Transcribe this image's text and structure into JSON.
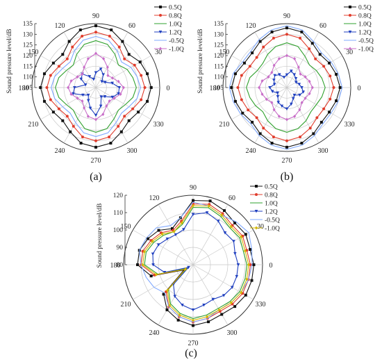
{
  "colors": {
    "background": "#ffffff",
    "axis": "#333333",
    "grid": "#c8c8c8",
    "text": "#222222"
  },
  "panel_labels": [
    "(a)",
    "(b)",
    "(c)"
  ],
  "chart_data": [
    {
      "type": "polar-line",
      "panel": "(a)",
      "ylabel": "Sound pressure level/dB",
      "rlim": [
        105,
        135
      ],
      "r_ticks": [
        105,
        110,
        115,
        120,
        125,
        130,
        135
      ],
      "angle_ticks": [
        0,
        30,
        60,
        90,
        120,
        150,
        180,
        210,
        240,
        270,
        300,
        330
      ],
      "grid": true,
      "legend_position": "top-right",
      "theta": [
        0,
        15,
        30,
        45,
        60,
        75,
        90,
        105,
        120,
        135,
        150,
        165,
        180,
        195,
        210,
        225,
        240,
        255,
        270,
        285,
        300,
        315,
        330,
        345
      ],
      "series": [
        {
          "name": "0.5Q",
          "color": "#111111",
          "marker": "square",
          "values": [
            131,
            130,
            129,
            127,
            130,
            133,
            134,
            133,
            130,
            127,
            128,
            130,
            131,
            130,
            128,
            127,
            129,
            132,
            133,
            132,
            129,
            127,
            128,
            130
          ]
        },
        {
          "name": "0.8Q",
          "color": "#e03c2c",
          "marker": "circle",
          "values": [
            128,
            127,
            126,
            124,
            127,
            130,
            131,
            130,
            127,
            124,
            125,
            127,
            128,
            127,
            125,
            124,
            126,
            129,
            130,
            129,
            126,
            124,
            125,
            127
          ]
        },
        {
          "name": "1.0Q",
          "color": "#2ea02c",
          "marker": "none",
          "values": [
            124,
            123,
            122,
            120,
            123,
            126,
            127,
            126,
            123,
            120,
            121,
            123,
            124,
            123,
            121,
            120,
            122,
            125,
            126,
            125,
            122,
            120,
            121,
            123
          ]
        },
        {
          "name": "1.2Q",
          "color": "#1f3fbf",
          "marker": "triangle",
          "values": [
            116,
            113,
            110,
            109,
            112,
            114,
            112,
            109,
            111,
            114,
            113,
            110,
            115,
            116,
            112,
            110,
            112,
            115,
            118,
            114,
            110,
            111,
            114,
            116
          ]
        },
        {
          "name": "-0.5Q",
          "color": "#7fa8ff",
          "marker": "none",
          "values": [
            126,
            125,
            124,
            122,
            125,
            128,
            129,
            128,
            125,
            122,
            123,
            125,
            126,
            125,
            123,
            122,
            124,
            127,
            128,
            127,
            124,
            122,
            123,
            125
          ]
        },
        {
          "name": "-1.0Q",
          "color": "#c86ec8",
          "marker": "diamond",
          "values": [
            118,
            116,
            114,
            113,
            116,
            119,
            121,
            119,
            116,
            114,
            115,
            117,
            118,
            117,
            115,
            114,
            116,
            119,
            120,
            118,
            115,
            114,
            115,
            117
          ]
        }
      ]
    },
    {
      "type": "polar-line",
      "panel": "(b)",
      "ylabel": "Sound pressure level/dB",
      "rlim": [
        105,
        135
      ],
      "r_ticks": [
        105,
        110,
        115,
        120,
        125,
        130,
        135
      ],
      "angle_ticks": [
        0,
        30,
        60,
        90,
        120,
        150,
        180,
        210,
        240,
        270,
        300,
        330
      ],
      "grid": true,
      "legend_position": "top-right",
      "theta": [
        0,
        15,
        30,
        45,
        60,
        75,
        90,
        105,
        120,
        135,
        150,
        165,
        180,
        195,
        210,
        225,
        240,
        255,
        270,
        285,
        300,
        315,
        330,
        345
      ],
      "series": [
        {
          "name": "0.5Q",
          "color": "#111111",
          "marker": "square",
          "values": [
            130,
            129,
            128,
            127,
            129,
            132,
            133,
            132,
            130,
            128,
            128,
            130,
            131,
            130,
            129,
            128,
            130,
            132,
            133,
            132,
            130,
            128,
            128,
            129
          ]
        },
        {
          "name": "0.8Q",
          "color": "#e03c2c",
          "marker": "circle",
          "values": [
            127,
            126,
            125,
            124,
            126,
            129,
            130,
            129,
            127,
            125,
            125,
            127,
            128,
            127,
            126,
            125,
            127,
            129,
            130,
            129,
            127,
            125,
            125,
            126
          ]
        },
        {
          "name": "1.0Q",
          "color": "#2ea02c",
          "marker": "none",
          "values": [
            123,
            122,
            121,
            120,
            122,
            125,
            126,
            125,
            123,
            121,
            121,
            123,
            124,
            123,
            122,
            121,
            123,
            125,
            126,
            125,
            123,
            121,
            121,
            122
          ]
        },
        {
          "name": "1.2Q",
          "color": "#1f3fbf",
          "marker": "triangle",
          "values": [
            112,
            111,
            110,
            111,
            112,
            113,
            111,
            110,
            112,
            113,
            112,
            111,
            113,
            112,
            110,
            111,
            113,
            114,
            115,
            113,
            111,
            110,
            112,
            113
          ]
        },
        {
          "name": "-0.5Q",
          "color": "#7fa8ff",
          "marker": "none",
          "values": [
            131,
            130,
            129,
            128,
            130,
            133,
            134,
            133,
            131,
            129,
            129,
            131,
            132,
            131,
            130,
            129,
            131,
            133,
            134,
            133,
            131,
            129,
            129,
            130
          ]
        },
        {
          "name": "-1.0Q",
          "color": "#c86ec8",
          "marker": "diamond",
          "values": [
            117,
            116,
            115,
            114,
            116,
            119,
            120,
            119,
            117,
            115,
            115,
            117,
            118,
            117,
            116,
            115,
            117,
            119,
            120,
            119,
            117,
            115,
            115,
            116
          ]
        }
      ]
    },
    {
      "type": "polar-line",
      "panel": "(c)",
      "ylabel": "Sound pressure level/dB",
      "rlim": [
        80,
        120
      ],
      "r_ticks": [
        80,
        90,
        100,
        110,
        120
      ],
      "angle_ticks": [
        0,
        30,
        60,
        90,
        120,
        150,
        180,
        210,
        240,
        270,
        300,
        330
      ],
      "grid": true,
      "legend_position": "top-right",
      "theta": [
        0,
        15,
        30,
        45,
        60,
        75,
        90,
        105,
        120,
        135,
        150,
        165,
        180,
        195,
        210,
        225,
        240,
        255,
        270,
        285,
        300,
        315,
        330,
        345
      ],
      "series": [
        {
          "name": "0.5Q",
          "color": "#111111",
          "marker": "square",
          "values": [
            115,
            114,
            115,
            114,
            116,
            118,
            117,
            108,
            104,
            108,
            110,
            112,
            112,
            105,
            86,
            104,
            110,
            113,
            115,
            114,
            113,
            114,
            115,
            115
          ]
        },
        {
          "name": "0.8Q",
          "color": "#e03c2c",
          "marker": "circle",
          "values": [
            113,
            112,
            113,
            112,
            114,
            116,
            115,
            106,
            103,
            106,
            108,
            110,
            110,
            103,
            85,
            102,
            108,
            111,
            113,
            112,
            111,
            112,
            113,
            113
          ]
        },
        {
          "name": "1.0Q",
          "color": "#2ea02c",
          "marker": "none",
          "values": [
            111,
            110,
            111,
            110,
            112,
            114,
            113,
            104,
            102,
            104,
            106,
            108,
            108,
            101,
            84,
            100,
            106,
            109,
            111,
            110,
            109,
            110,
            111,
            111
          ]
        },
        {
          "name": "1.2Q",
          "color": "#1f3fbf",
          "marker": "triangle",
          "values": [
            106,
            105,
            107,
            106,
            109,
            111,
            109,
            101,
            100,
            101,
            103,
            104,
            103,
            97,
            83,
            96,
            101,
            104,
            106,
            104,
            103,
            105,
            106,
            106
          ]
        },
        {
          "name": "-0.5Q",
          "color": "#7fa8ff",
          "marker": "none",
          "values": [
            114,
            115,
            117,
            115,
            113,
            115,
            116,
            108,
            106,
            110,
            111,
            112,
            110,
            108,
            106,
            103,
            108,
            111,
            113,
            112,
            110,
            111,
            112,
            113
          ]
        },
        {
          "name": "-1.0Q",
          "color": "#d4b800",
          "marker": "diamond",
          "values": [
            112,
            111,
            112,
            111,
            113,
            115,
            114,
            105,
            102,
            105,
            107,
            109,
            109,
            102,
            85,
            101,
            107,
            110,
            112,
            111,
            110,
            111,
            112,
            112
          ]
        }
      ]
    }
  ]
}
